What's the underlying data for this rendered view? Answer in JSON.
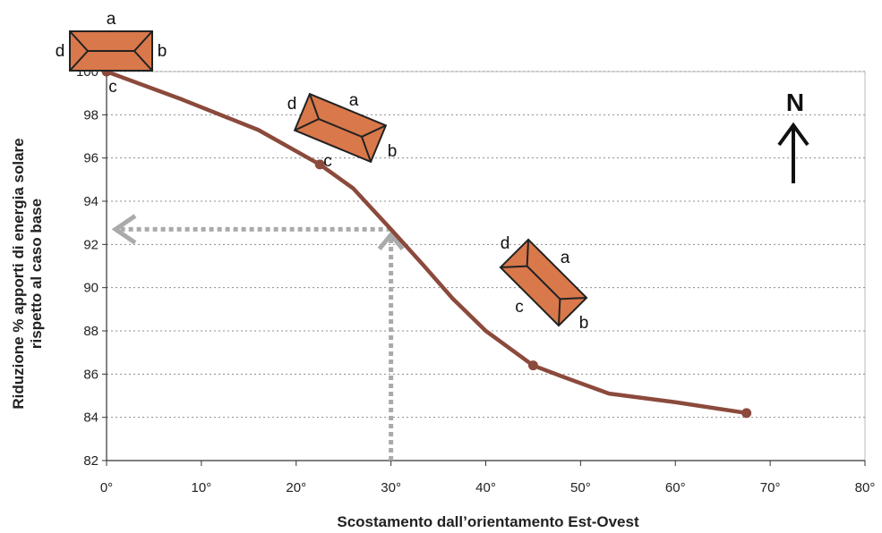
{
  "chart_data": {
    "type": "line",
    "title": "",
    "xlabel": "Scostamento dall’orientamento Est-Ovest",
    "ylabel_lines": [
      "Riduzione % apporti di energia solare",
      "rispetto al caso base"
    ],
    "xlim": [
      0,
      80
    ],
    "ylim": [
      82,
      100
    ],
    "xticks": [
      0,
      10,
      20,
      30,
      40,
      50,
      60,
      70,
      80
    ],
    "xtick_labels": [
      "0°",
      "10°",
      "20°",
      "30°",
      "40°",
      "50°",
      "60°",
      "70°",
      "80°"
    ],
    "yticks": [
      82,
      84,
      86,
      88,
      90,
      92,
      94,
      96,
      98,
      100
    ],
    "grid": "horizontal dashed",
    "series": [
      {
        "color": "#8b4a3c",
        "points": [
          {
            "x": 0,
            "y": 100
          },
          {
            "x": 8,
            "y": 98.7
          },
          {
            "x": 16,
            "y": 97.3
          },
          {
            "x": 22.5,
            "y": 95.7
          },
          {
            "x": 26,
            "y": 94.6
          },
          {
            "x": 30,
            "y": 92.7
          },
          {
            "x": 33.5,
            "y": 91
          },
          {
            "x": 36.5,
            "y": 89.5
          },
          {
            "x": 40,
            "y": 88
          },
          {
            "x": 45,
            "y": 86.4
          },
          {
            "x": 48,
            "y": 85.9
          },
          {
            "x": 53,
            "y": 85.1
          },
          {
            "x": 60,
            "y": 84.7
          },
          {
            "x": 67.5,
            "y": 84.2
          }
        ],
        "markers": [
          {
            "x": 0,
            "y": 100
          },
          {
            "x": 22.5,
            "y": 95.7
          },
          {
            "x": 45,
            "y": 86.4
          },
          {
            "x": 67.5,
            "y": 84.2
          }
        ]
      }
    ],
    "guide": {
      "x": 30,
      "y": 92.7,
      "color": "#aaaaaa"
    },
    "building_icons": [
      {
        "rotation": 0,
        "fill": "#d9784a",
        "labels": {
          "a": "a",
          "b": "b",
          "c": "c",
          "d": "d"
        }
      },
      {
        "rotation": 22.5,
        "fill": "#d9784a",
        "labels": {
          "a": "a",
          "b": "b",
          "c": "c",
          "d": "d"
        }
      },
      {
        "rotation": 45,
        "fill": "#d9784a",
        "labels": {
          "a": "a",
          "b": "b",
          "c": "c",
          "d": "d"
        }
      }
    ],
    "north_label": "N"
  }
}
